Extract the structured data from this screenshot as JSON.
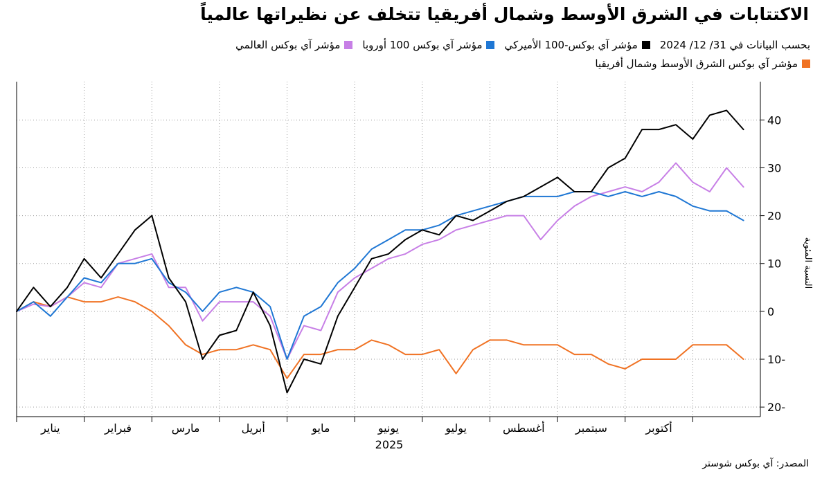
{
  "title": "الاكتتابات في الشرق الأوسط وشمال أفريقيا تتخلف عن نظيراتها عالمياً",
  "legend": {
    "date_note": "بحسب البيانات في 31/ 12/ 2024",
    "items": [
      {
        "label": "مؤشر آي بوكس-100 الأميركي",
        "color": "#000000"
      },
      {
        "label": "مؤشر آي بوكس 100 أوروبا",
        "color": "#1f77d4"
      },
      {
        "label": "مؤشر آي بوكس العالمي",
        "color": "#c77fe6"
      },
      {
        "label": "مؤشر آي بوكس الشرق الأوسط وشمال أفريقيا",
        "color": "#f07223"
      }
    ]
  },
  "source": "المصدر: آي بوكس شوستر",
  "chart_data": {
    "type": "line",
    "xlabel": "2025",
    "ylabel": "النسبة المئوية",
    "ylim": [
      -22,
      48
    ],
    "yticks": [
      40,
      30,
      20,
      10,
      0,
      -10,
      -20
    ],
    "ytick_labels": [
      "40",
      "30",
      "20",
      "10",
      "0",
      "10-",
      "20-"
    ],
    "month_labels": [
      "يناير",
      "فبراير",
      "مارس",
      "أبريل",
      "مايو",
      "يونيو",
      "يوليو",
      "أغسطس",
      "سبتمبر",
      "أكتوبر"
    ],
    "x": [
      0,
      0.5,
      1,
      1.5,
      2,
      2.5,
      3,
      3.5,
      4,
      4.5,
      5,
      5.5,
      6,
      6.5,
      7,
      7.5,
      8,
      8.5,
      9,
      9.5,
      10,
      10.5,
      11,
      11.5,
      12,
      12.5,
      13,
      13.5,
      14,
      14.5,
      15,
      15.5,
      16,
      16.5,
      17,
      17.5,
      18,
      18.5,
      19,
      19.5,
      20,
      20.5,
      21,
      21.5
    ],
    "series": [
      {
        "name": "مؤشر آي بوكس-100 الأميركي",
        "color": "#000000",
        "values": [
          0,
          5,
          1,
          5,
          11,
          7,
          12,
          17,
          20,
          7,
          2,
          -10,
          -5,
          -4,
          4,
          -3,
          -17,
          -10,
          -11,
          -1,
          5,
          11,
          12,
          15,
          17,
          16,
          20,
          19,
          21,
          23,
          24,
          26,
          28,
          25,
          25,
          30,
          32,
          38,
          38,
          39,
          36,
          41,
          42,
          38
        ]
      },
      {
        "name": "مؤشر آي بوكس 100 أوروبا",
        "color": "#1f77d4",
        "values": [
          0,
          2,
          -1,
          3,
          7,
          6,
          10,
          10,
          11,
          6,
          4,
          0,
          4,
          5,
          4,
          1,
          -10,
          -1,
          1,
          6,
          9,
          13,
          15,
          17,
          17,
          18,
          20,
          21,
          22,
          23,
          24,
          24,
          24,
          25,
          25,
          24,
          25,
          24,
          25,
          24,
          22,
          21,
          21,
          19
        ]
      },
      {
        "name": "مؤشر آي بوكس العالمي",
        "color": "#c77fe6",
        "values": [
          0,
          1.5,
          1,
          3,
          6,
          5,
          10,
          11,
          12,
          5,
          5,
          -2,
          2,
          2,
          2,
          -1,
          -10,
          -3,
          -4,
          4,
          7,
          9,
          11,
          12,
          14,
          15,
          17,
          18,
          19,
          20,
          20,
          15,
          19,
          22,
          24,
          25,
          26,
          25,
          27,
          31,
          27,
          25,
          30,
          26
        ]
      },
      {
        "name": "مؤشر آي بوكس الشرق الأوسط وشمال أفريقيا",
        "color": "#f07223",
        "values": [
          0,
          2,
          1,
          3,
          2,
          2,
          3,
          2,
          0,
          -3,
          -7,
          -9,
          -8,
          -8,
          -7,
          -8,
          -14,
          -9,
          -9,
          -8,
          -8,
          -6,
          -7,
          -9,
          -9,
          -8,
          -13,
          -8,
          -6,
          -6,
          -7,
          -7,
          -7,
          -9,
          -9,
          -11,
          -12,
          -10,
          -10,
          -10,
          -7,
          -7,
          -7,
          -10
        ]
      }
    ]
  }
}
